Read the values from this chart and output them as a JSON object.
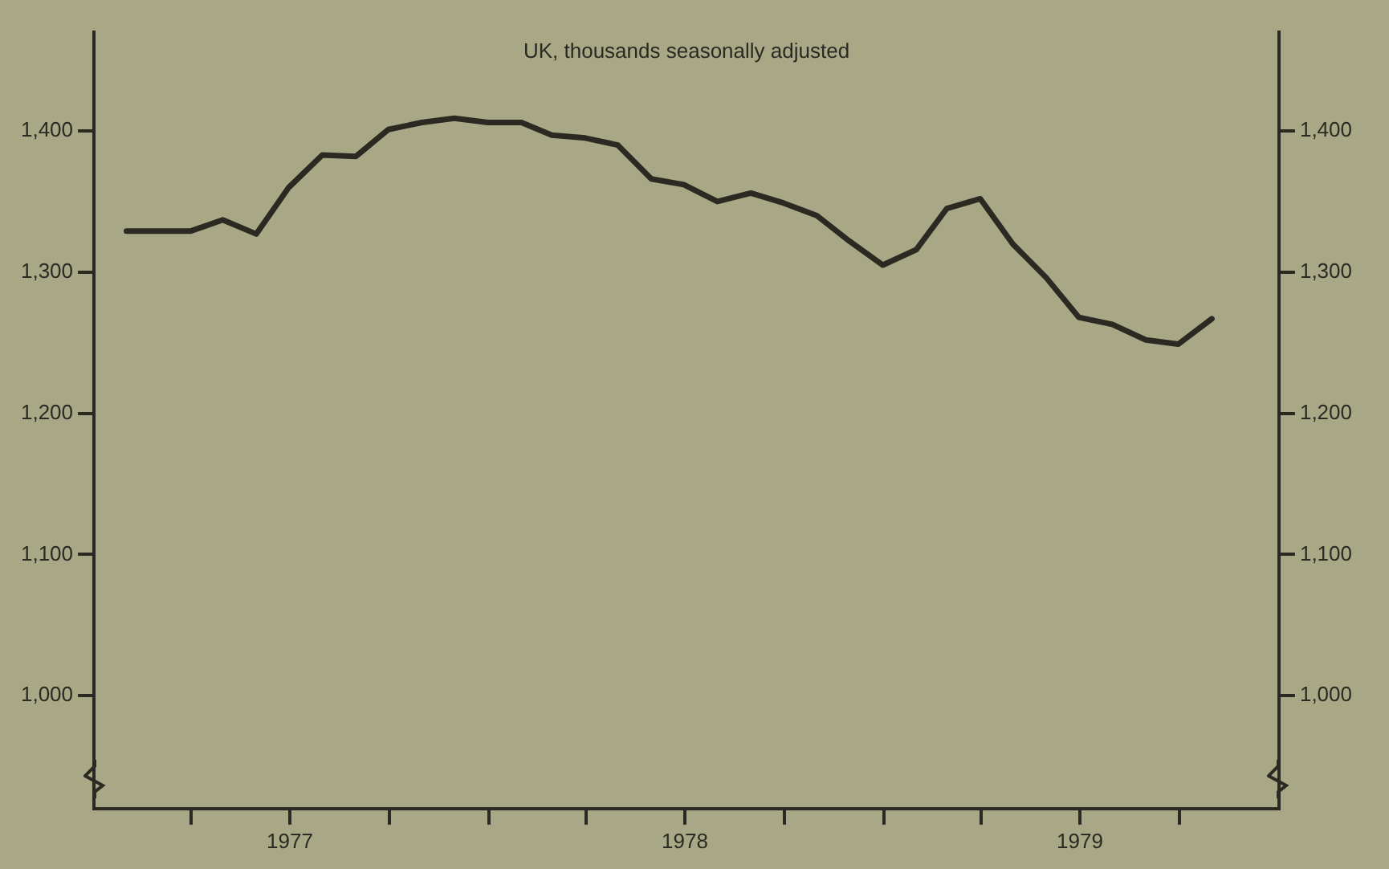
{
  "chart_data": {
    "type": "line",
    "subtitle": "UK, thousands seasonally adjusted",
    "x": [
      "1977-01-31",
      "1977-02-28",
      "1977-03-31",
      "1977-04-30",
      "1977-05-31",
      "1977-06-30",
      "1977-07-31",
      "1977-08-31",
      "1977-09-30",
      "1977-10-31",
      "1977-11-30",
      "1977-12-31",
      "1978-01-31",
      "1978-02-28",
      "1978-03-31",
      "1978-04-30",
      "1978-05-31",
      "1978-06-30",
      "1978-07-31",
      "1978-08-31",
      "1978-09-30",
      "1978-10-31",
      "1978-11-30",
      "1978-12-31",
      "1979-01-31",
      "1979-02-28",
      "1979-03-31",
      "1979-04-30",
      "1979-05-31",
      "1979-06-30",
      "1979-07-31",
      "1979-08-31",
      "1979-09-30",
      "1979-10-31"
    ],
    "series": [
      {
        "color": "#2b2a22",
        "values": [
          1329,
          1329,
          1329,
          1337,
          1327,
          1360,
          1383,
          1382,
          1401,
          1406,
          1409,
          1406,
          1406,
          1397,
          1395,
          1390,
          1366,
          1362,
          1350,
          1356,
          1349,
          1340,
          1322,
          1305,
          1316,
          1345,
          1352,
          1320,
          1296,
          1268,
          1263,
          1252,
          1249,
          1267
        ]
      }
    ],
    "xlim": [
      "1977-01-01",
      "1980-01-01"
    ],
    "xticks": [
      {
        "value": "1977-04-01",
        "label": null
      },
      {
        "value": "1977-07-01",
        "label": "1977"
      },
      {
        "value": "1977-10-01",
        "label": null
      },
      {
        "value": "1978-01-01",
        "label": null
      },
      {
        "value": "1978-04-01",
        "label": null
      },
      {
        "value": "1978-07-01",
        "label": "1978"
      },
      {
        "value": "1978-10-01",
        "label": null
      },
      {
        "value": "1979-01-01",
        "label": null
      },
      {
        "value": "1979-04-01",
        "label": null
      },
      {
        "value": "1979-07-01",
        "label": "1979"
      },
      {
        "value": "1979-10-01",
        "label": null
      }
    ],
    "ylim": [
      920,
      1470
    ],
    "yticks": [
      {
        "value": 1000,
        "label": "1,000"
      },
      {
        "value": 1100,
        "label": "1,100"
      },
      {
        "value": 1200,
        "label": "1,200"
      },
      {
        "value": 1300,
        "label": "1,300"
      },
      {
        "value": 1400,
        "label": "1,400"
      }
    ],
    "y2lim": [
      920,
      1470
    ],
    "y2ticks": [
      {
        "value": 1000,
        "label": "1,000"
      },
      {
        "value": 1100,
        "label": "1,100"
      },
      {
        "value": 1200,
        "label": "1,200"
      },
      {
        "value": 1300,
        "label": "1,300"
      },
      {
        "value": 1400,
        "label": "1,400"
      }
    ],
    "grid": false,
    "legend": false,
    "marker": "none",
    "line_style": "solid"
  }
}
